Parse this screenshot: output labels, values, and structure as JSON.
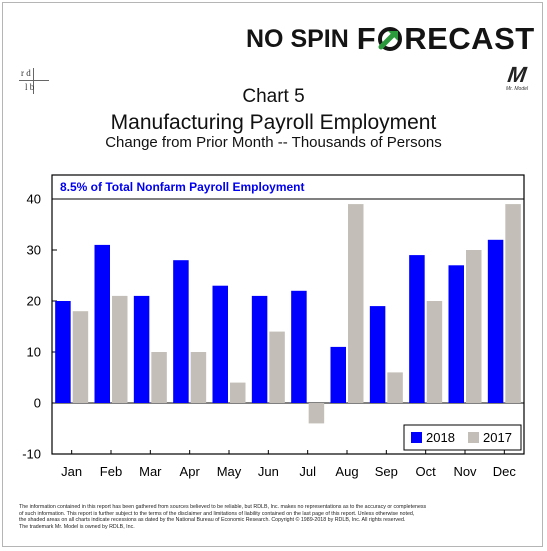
{
  "brand": {
    "part1": "NO SPIN",
    "part2_prefix": "F",
    "part2_suffix": "RECAST",
    "logo_left": "r d",
    "logo_right": "l b",
    "mark": "M",
    "mark_tag": "Mr. Model"
  },
  "titles": {
    "chart_number": "Chart 5",
    "main": "Manufacturing Payroll Employment",
    "sub": "Change from Prior Month -- Thousands of Persons"
  },
  "colors": {
    "series_2018": "#0000ff",
    "series_2017": "#c3bfb8",
    "annotation": "#0000ee",
    "brand_green": "#2a9a3c"
  },
  "chart_data": {
    "type": "bar",
    "annotation": "8.5% of Total Nonfarm Payroll Employment",
    "categories": [
      "Jan",
      "Feb",
      "Mar",
      "Apr",
      "May",
      "Jun",
      "Jul",
      "Aug",
      "Sep",
      "Oct",
      "Nov",
      "Dec"
    ],
    "series": [
      {
        "name": "2018",
        "values": [
          20,
          31,
          21,
          28,
          23,
          21,
          22,
          11,
          19,
          29,
          27,
          32
        ]
      },
      {
        "name": "2017",
        "values": [
          18,
          21,
          10,
          10,
          4,
          14,
          -4,
          39,
          6,
          20,
          30,
          39
        ]
      }
    ],
    "ylim": [
      -10,
      40
    ],
    "yticks": [
      -10,
      0,
      10,
      20,
      30,
      40
    ],
    "legend_position": "bottom-right",
    "grid": false
  },
  "footer": {
    "line1": "The information contained in this report has been gathered from sources believed to be reliable, but RDLB, Inc. makes no representations as to the accuracy or completeness",
    "line2": "of such information. This report is further subject to the terms of the disclaimer and limitations of liability contained on the last page of this report.  Unless otherwise noted,",
    "line3": "the shaded areas on all charts indicate recessions as dated by the National Bureau of Economic Research.  Copyright © 1989-2018 by RDLB, Inc.  All rights reserved.",
    "line4": "The trademark Mr. Model is owned by RDLB, Inc."
  }
}
